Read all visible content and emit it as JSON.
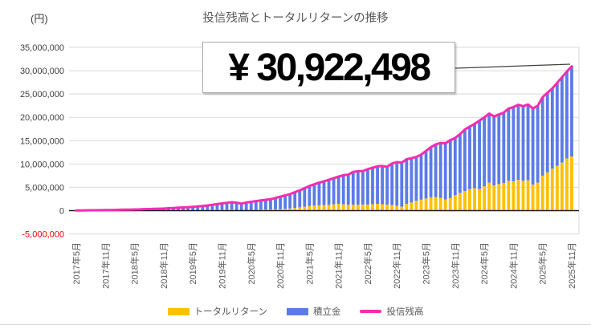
{
  "header": {
    "unit_label": "(円)",
    "title": "投信残高とトータルリターンの推移"
  },
  "callout": {
    "value": "¥ 30,922,498"
  },
  "chart_data": {
    "type": "bar",
    "subtype": "stacked-bars-with-line",
    "title": "投信残高とトータルリターンの推移",
    "values_unit": "million_yen",
    "start_month": "2017年5月",
    "end_month": "2025年11月",
    "months_count": 103,
    "grid": "horizontal",
    "legend_position": "bottom",
    "x_axis": {
      "tick_interval": 6,
      "tick_labels": [
        "2017年5月",
        "2017年11月",
        "2018年5月",
        "2018年11月",
        "2019年5月",
        "2019年11月",
        "2020年5月",
        "2020年11月",
        "2021年5月",
        "2021年11月",
        "2022年5月",
        "2022年11月",
        "2023年5月",
        "2023年11月",
        "2024年5月",
        "2024年11月",
        "2025年5月",
        "2025年11月"
      ],
      "label_color": "#595959"
    },
    "y_axis": {
      "ylim_yen": [
        -5000000,
        35000000
      ],
      "tick_values": [
        35,
        30,
        25,
        20,
        15,
        10,
        5,
        0,
        -5
      ],
      "tick_labels": [
        "35,000,000",
        "30,000,000",
        "25,000,000",
        "20,000,000",
        "15,000,000",
        "10,000,000",
        "5,000,000",
        "0",
        "-5,000,000"
      ],
      "label_color": "#404040",
      "negative_tick_color": "#FF0000",
      "gridline_color": "#D9D9D9",
      "zero_axis_color": "#1a1a1a"
    },
    "series": [
      {
        "name": "トータルリターン",
        "type": "bar",
        "color": "#FFC000",
        "values": [
          0.0,
          0.0,
          0.0,
          0.01,
          0.01,
          0.01,
          0.01,
          0.01,
          0.01,
          0.02,
          0.02,
          0.02,
          0.02,
          0.02,
          0.02,
          0.03,
          0.03,
          0.03,
          0.03,
          0.04,
          0.04,
          0.05,
          0.05,
          0.06,
          0.06,
          0.08,
          0.09,
          0.11,
          0.12,
          0.14,
          0.15,
          0.18,
          0.2,
          0.08,
          0.02,
          0.06,
          0.1,
          0.15,
          0.2,
          0.25,
          0.25,
          0.28,
          0.3,
          0.38,
          0.45,
          0.58,
          0.7,
          0.85,
          1.0,
          1.08,
          1.15,
          1.2,
          1.25,
          1.35,
          1.45,
          1.35,
          1.25,
          1.28,
          1.3,
          1.3,
          1.3,
          1.38,
          1.45,
          1.38,
          1.3,
          1.18,
          1.05,
          0.85,
          1.45,
          1.75,
          2.1,
          2.35,
          2.6,
          2.85,
          2.9,
          2.75,
          2.4,
          2.7,
          3.3,
          3.8,
          4.2,
          4.6,
          4.8,
          4.6,
          5.2,
          6.0,
          5.4,
          5.7,
          5.9,
          6.4,
          6.3,
          6.6,
          6.4,
          6.5,
          5.6,
          6.0,
          7.5,
          8.2,
          9.0,
          9.6,
          10.3,
          11.2,
          11.6
        ]
      },
      {
        "name": "積立金",
        "type": "bar",
        "color": "#5B7BE8",
        "values": [
          0.04,
          0.05,
          0.06,
          0.08,
          0.09,
          0.1,
          0.11,
          0.13,
          0.15,
          0.17,
          0.19,
          0.21,
          0.23,
          0.26,
          0.29,
          0.32,
          0.36,
          0.39,
          0.42,
          0.47,
          0.53,
          0.58,
          0.63,
          0.68,
          0.74,
          0.82,
          0.91,
          0.99,
          1.13,
          1.26,
          1.4,
          1.5,
          1.6,
          1.62,
          1.48,
          1.69,
          1.8,
          1.9,
          2.0,
          2.08,
          2.2,
          2.44,
          2.7,
          2.9,
          3.1,
          3.37,
          3.65,
          3.97,
          4.3,
          4.57,
          4.85,
          5.1,
          5.35,
          5.6,
          5.85,
          6.25,
          6.45,
          7.02,
          7.15,
          7.2,
          7.6,
          7.82,
          8.05,
          8.17,
          8.1,
          8.92,
          9.35,
          9.45,
          9.55,
          9.5,
          9.4,
          9.65,
          10.2,
          10.75,
          11.3,
          11.75,
          12.05,
          12.4,
          12.3,
          12.6,
          13.2,
          13.4,
          13.8,
          14.7,
          14.8,
          14.8,
          14.8,
          14.9,
          15.1,
          15.5,
          15.9,
          16.1,
          16.0,
          16.25,
          16.3,
          16.5,
          16.8,
          17.1,
          17.2,
          17.8,
          18.3,
          18.6,
          19.32
        ]
      },
      {
        "name": "投信残高",
        "type": "line",
        "color": "#F72BB0",
        "values": [
          0.04,
          0.05,
          0.07,
          0.08,
          0.09,
          0.11,
          0.12,
          0.14,
          0.16,
          0.19,
          0.21,
          0.23,
          0.25,
          0.28,
          0.32,
          0.35,
          0.38,
          0.42,
          0.45,
          0.51,
          0.57,
          0.63,
          0.68,
          0.74,
          0.8,
          0.9,
          1.0,
          1.1,
          1.25,
          1.4,
          1.55,
          1.68,
          1.8,
          1.7,
          1.5,
          1.75,
          1.9,
          2.05,
          2.2,
          2.33,
          2.45,
          2.72,
          3.0,
          3.28,
          3.55,
          3.95,
          4.35,
          4.82,
          5.3,
          5.65,
          6.0,
          6.3,
          6.6,
          6.95,
          7.3,
          7.6,
          7.7,
          8.3,
          8.45,
          8.5,
          8.9,
          9.2,
          9.5,
          9.55,
          9.4,
          10.1,
          10.4,
          10.3,
          11.0,
          11.25,
          11.5,
          12.0,
          12.8,
          13.6,
          14.2,
          14.5,
          14.45,
          15.1,
          15.6,
          16.4,
          17.4,
          18.0,
          18.6,
          19.3,
          20.0,
          20.8,
          20.2,
          20.6,
          21.0,
          21.9,
          22.2,
          22.7,
          22.4,
          22.75,
          21.9,
          22.5,
          24.3,
          25.3,
          26.2,
          27.4,
          28.6,
          29.8,
          30.922498
        ]
      }
    ],
    "annotation": {
      "label": "¥ 30,922,498",
      "value_yen": 30922498,
      "points_to": "2025年11月"
    }
  }
}
